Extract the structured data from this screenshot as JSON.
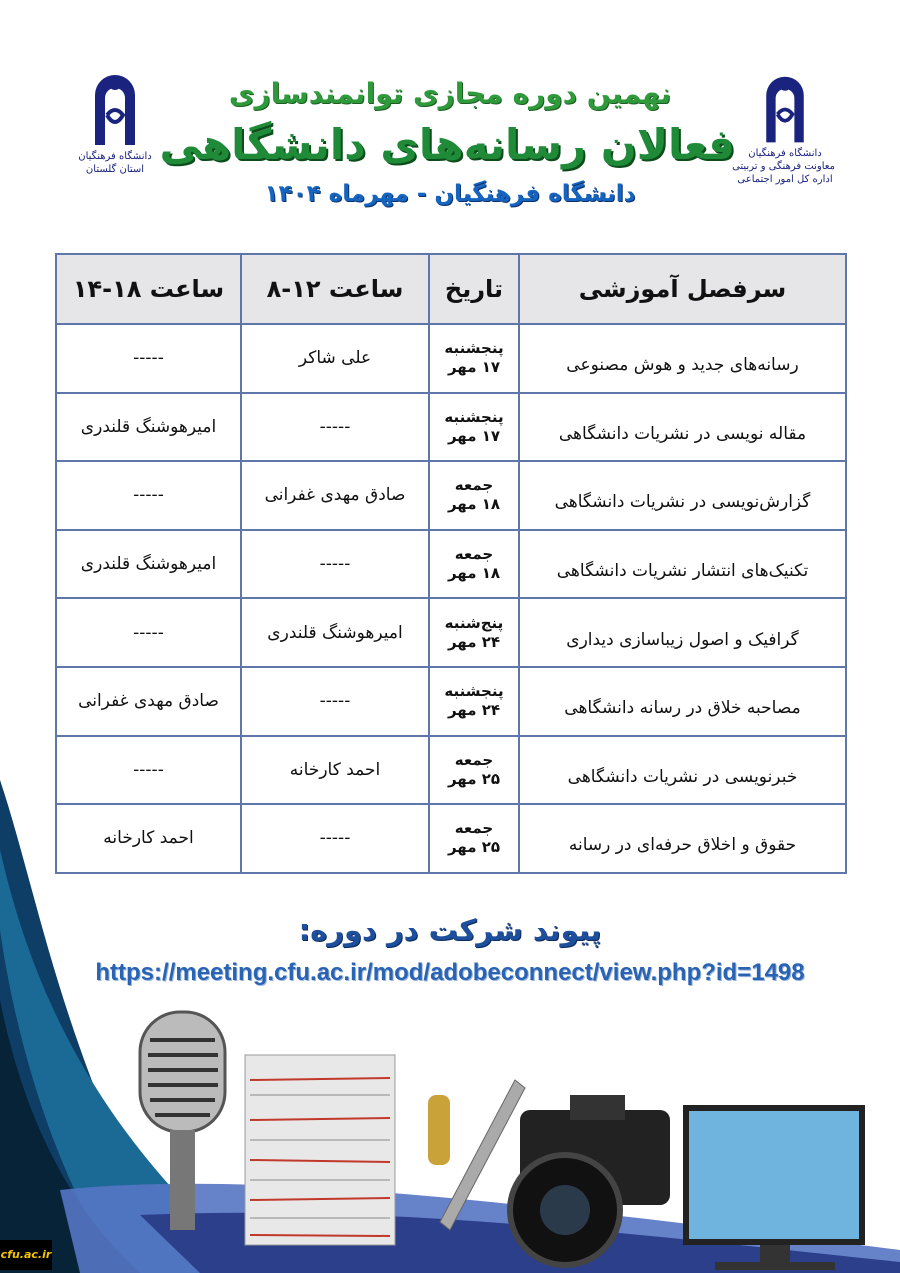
{
  "header": {
    "line1": "نهمین دوره مجازی توانمندسازی",
    "line2": "فعالان رسانه‌های دانشگاهی",
    "line3": "دانشگاه فرهنگیان - مهرماه ۱۴۰۴"
  },
  "logos": {
    "left": {
      "line1": "دانشگاه فرهنگیان",
      "line2": "استان گلستان"
    },
    "right": {
      "line1": "دانشگاه فرهنگیان",
      "line2": "معاونت فرهنگی و تربیتی",
      "line3": "اداره کل امور اجتماعی"
    }
  },
  "table": {
    "headers": [
      "سرفصل آموزشی",
      "تاریخ",
      "ساعت ۱۲-۸",
      "ساعت ۱۸-۱۴"
    ],
    "rows": [
      {
        "topic": "رسانه‌های جدید و هوش مصنوعی",
        "day": "پنجشنبه",
        "date": "۱۷ مهر",
        "slot1": "علی شاکر",
        "slot2": "-----"
      },
      {
        "topic": "مقاله نویسی در نشریات دانشگاهی",
        "day": "پنجشنبه",
        "date": "۱۷ مهر",
        "slot1": "-----",
        "slot2": "امیرهوشنگ قلندری"
      },
      {
        "topic": "گزارش‌نویسی در نشریات دانشگاهی",
        "day": "جمعه",
        "date": "۱۸ مهر",
        "slot1": "صادق مهدی غفرانی",
        "slot2": "-----"
      },
      {
        "topic": "تکنیک‌های انتشار نشریات دانشگاهی",
        "day": "جمعه",
        "date": "۱۸ مهر",
        "slot1": "-----",
        "slot2": "امیرهوشنگ قلندری"
      },
      {
        "topic": "گرافیک و اصول زیباسازی دیداری",
        "day": "پنج‌شنبه",
        "date": "۲۴ مهر",
        "slot1": "امیرهوشنگ قلندری",
        "slot2": "-----"
      },
      {
        "topic": "مصاحبه خلاق در رسانه دانشگاهی",
        "day": "پنجشنبه",
        "date": "۲۴ مهر",
        "slot1": "-----",
        "slot2": "صادق مهدی غفرانی"
      },
      {
        "topic": "خبرنویسی در نشریات دانشگاهی",
        "day": "جمعه",
        "date": "۲۵ مهر",
        "slot1": "احمد کارخانه",
        "slot2": "-----"
      },
      {
        "topic": "حقوق و اخلاق حرفه‌ای در رسانه",
        "day": "جمعه",
        "date": "۲۵ مهر",
        "slot1": "-----",
        "slot2": "احمد کارخانه"
      }
    ]
  },
  "link": {
    "title": "پیوند شرکت در دوره:",
    "url": "https://meeting.cfu.ac.ir/mod/adobeconnect/view.php?id=1498"
  },
  "footer": {
    "watermark": "cfu.ac.ir"
  },
  "colors": {
    "title_green": "#1f8a38",
    "accent_blue": "#1565c0",
    "table_border": "#5f77a8",
    "header_fill": "#e6e6e8"
  }
}
